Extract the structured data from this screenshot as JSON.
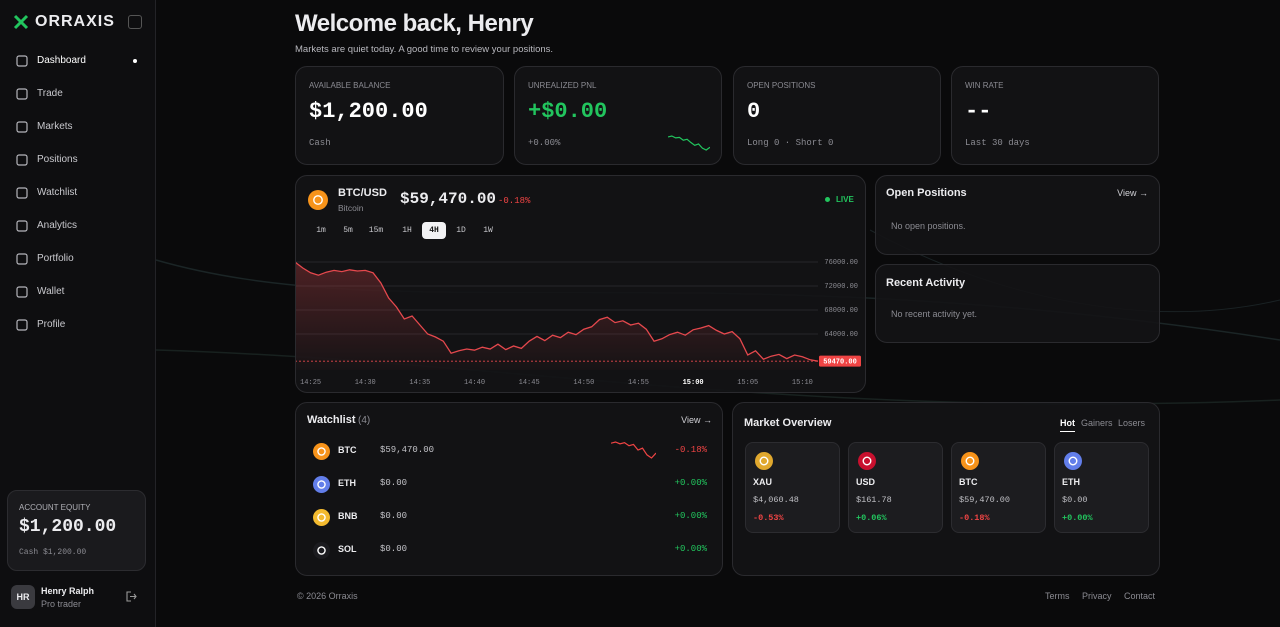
{
  "brand": "ORRAXIS",
  "nav": [
    "Dashboard",
    "Trade",
    "Markets",
    "Positions",
    "Watchlist",
    "Analytics",
    "Portfolio",
    "Wallet",
    "Profile"
  ],
  "active_nav": 0,
  "sidebar_card": {
    "label": "ACCOUNT EQUITY",
    "value": "$1,200.00",
    "note": "Cash $1,200.00"
  },
  "user": {
    "initials": "HR",
    "name": "Henry Ralph",
    "role": "Pro trader"
  },
  "header": {
    "title": "Welcome back, Henry",
    "subtitle": "Markets are quiet today. A good time to review your positions."
  },
  "stats": [
    {
      "label": "AVAILABLE BALANCE",
      "value": "$1,200.00",
      "note": "Cash"
    },
    {
      "label": "UNREALIZED PNL",
      "value": "+$0.00",
      "note": "+0.00%",
      "sparkline": [
        5,
        5.2,
        4.8,
        4.9,
        4.3,
        4.5,
        3.8,
        3.2,
        3.5,
        2.6,
        2.2,
        2.8
      ]
    },
    {
      "label": "OPEN POSITIONS",
      "value": "0",
      "note": "Long 0 · Short 0"
    },
    {
      "label": "WIN RATE",
      "value": "--",
      "note": "Last 30 days"
    }
  ],
  "ticker": {
    "pair": "BTC/USD",
    "name": "Bitcoin",
    "price": "$59,470.00",
    "change": "-0.18%",
    "status": "LIVE",
    "timeframes": [
      "1m",
      "5m",
      "15m",
      "1H",
      "4H",
      "1D",
      "1W"
    ],
    "active_timeframe": 4
  },
  "chart_data": {
    "type": "line",
    "color": "#e5484d",
    "grid": true,
    "categories": [
      null,
      null,
      "14:25",
      null,
      null,
      null,
      null,
      null,
      null,
      "14:30",
      null,
      null,
      null,
      null,
      null,
      null,
      "14:35",
      null,
      null,
      null,
      null,
      null,
      null,
      "14:40",
      null,
      null,
      null,
      null,
      null,
      null,
      "14:45",
      null,
      null,
      null,
      null,
      null,
      null,
      "14:50",
      null,
      null,
      null,
      null,
      null,
      null,
      "14:55",
      null,
      null,
      null,
      null,
      null,
      null,
      "15:00",
      null,
      null,
      null,
      null,
      null,
      null,
      "15:05",
      null,
      null,
      null,
      null,
      null,
      null,
      "15:10",
      null,
      null
    ],
    "values": [
      76000,
      75000,
      74200,
      73800,
      74300,
      74600,
      74400,
      74700,
      74500,
      74600,
      74200,
      72500,
      70000,
      68500,
      66500,
      67000,
      65500,
      64000,
      63500,
      62800,
      60800,
      61200,
      61500,
      61300,
      61800,
      61500,
      62300,
      61400,
      62000,
      61600,
      62800,
      63600,
      62900,
      63800,
      63400,
      64300,
      63900,
      64800,
      65200,
      66400,
      66800,
      65900,
      66200,
      65500,
      65800,
      64800,
      62800,
      63200,
      63900,
      64300,
      63800,
      64700,
      65000,
      65400,
      64600,
      64000,
      64400,
      63200,
      60500,
      61200,
      59800,
      60300,
      60600,
      59900,
      60500,
      60200,
      59700,
      59470
    ],
    "ylim": [
      58000,
      77000
    ],
    "yticks": [
      {
        "value": 64000,
        "label": "64000.00"
      },
      {
        "value": 68000,
        "label": "68000.00"
      },
      {
        "value": 72000,
        "label": "72000.00"
      },
      {
        "value": 76000,
        "label": "76000.00"
      }
    ],
    "last_value": {
      "value": 59470,
      "label": "59470.00"
    }
  },
  "open_positions": {
    "title": "Open Positions",
    "link": "View →",
    "empty": "No open positions."
  },
  "recent_activity": {
    "title": "Recent Activity",
    "empty": "No recent activity yet."
  },
  "watchlist": {
    "title": "Watchlist",
    "count": "(4)",
    "link": "View →",
    "rows": [
      {
        "symbol": "BTC",
        "price": "$59,470.00",
        "change": "-0.18%",
        "sparkline": [
          5,
          5.2,
          4.9,
          5.1,
          4.6,
          4.8,
          3.9,
          4.2,
          3.1,
          2.6,
          3.4
        ]
      },
      {
        "symbol": "ETH",
        "price": "$0.00",
        "change": "+0.00%"
      },
      {
        "symbol": "BNB",
        "price": "$0.00",
        "change": "+0.00%"
      },
      {
        "symbol": "SOL",
        "price": "$0.00",
        "change": "+0.00%"
      }
    ]
  },
  "market_overview": {
    "title": "Market Overview",
    "tabs": [
      "Hot",
      "Gainers",
      "Losers"
    ],
    "active_tab": 0,
    "cards": [
      {
        "symbol": "XAU",
        "price": "$4,060.48",
        "change": "-0.53%"
      },
      {
        "symbol": "USD",
        "price": "$161.78",
        "change": "+0.06%"
      },
      {
        "symbol": "BTC",
        "price": "$59,470.00",
        "change": "-0.18%"
      },
      {
        "symbol": "ETH",
        "price": "$0.00",
        "change": "+0.00%"
      }
    ]
  },
  "footer": {
    "copyright": "© 2026 Orraxis",
    "links": [
      "Terms",
      "Privacy",
      "Contact"
    ]
  }
}
